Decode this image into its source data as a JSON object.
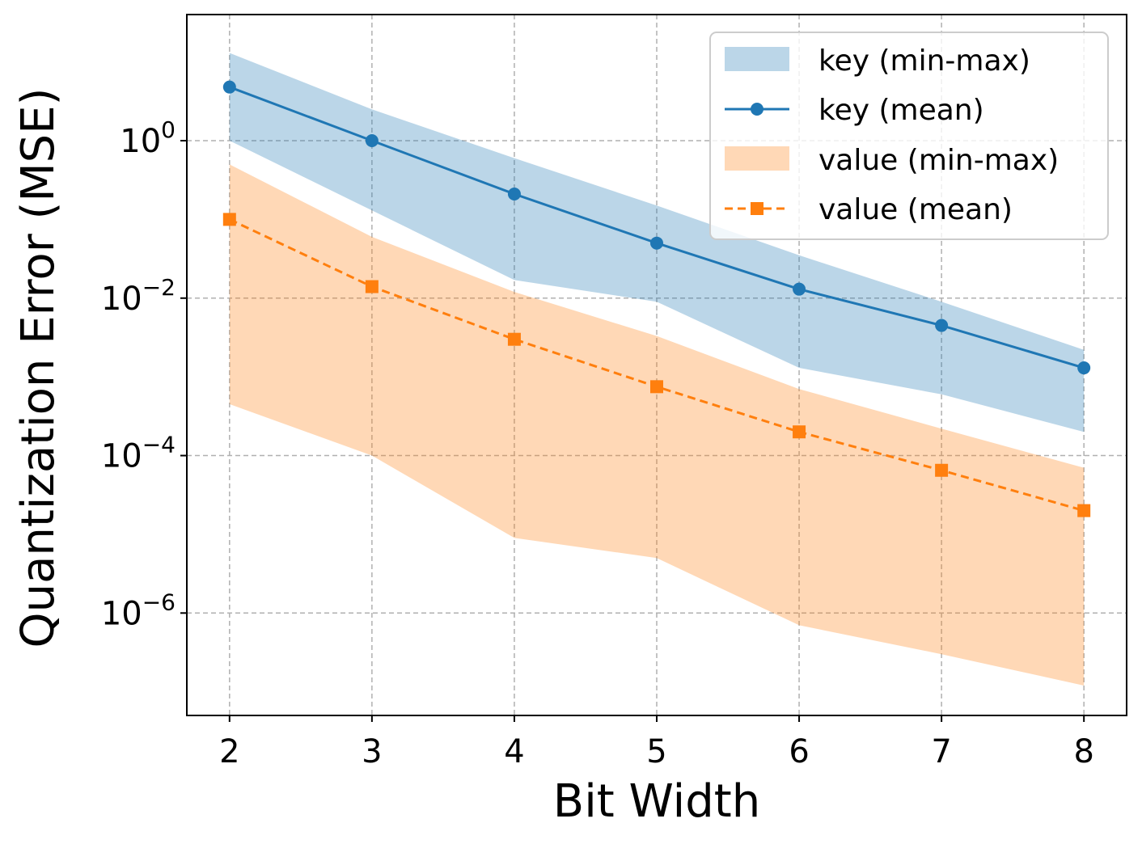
{
  "chart_data": {
    "type": "line",
    "xlabel": "Bit Width",
    "ylabel": "Quantization Error (MSE)",
    "yscale": "log",
    "ylim": [
      5e-08,
      40
    ],
    "xlim": [
      1.7,
      8.3
    ],
    "grid": true,
    "legend_location": "top-right",
    "x": [
      2,
      3,
      4,
      5,
      6,
      7,
      8
    ],
    "x_tick_labels": [
      "2",
      "3",
      "4",
      "5",
      "6",
      "7",
      "8"
    ],
    "y_ticks": [
      {
        "value": 1,
        "base": "10",
        "exp": "0"
      },
      {
        "value": 0.01,
        "base": "10",
        "exp": "−2"
      },
      {
        "value": 0.0001,
        "base": "10",
        "exp": "−4"
      },
      {
        "value": 1e-06,
        "base": "10",
        "exp": "−6"
      }
    ],
    "series": [
      {
        "name": "key (min-max)",
        "kind": "band",
        "color": "#1f77b4",
        "lower": [
          1.0,
          0.13,
          0.017,
          0.009,
          0.0013,
          0.0006,
          0.0002
        ],
        "upper": [
          13.0,
          2.5,
          0.6,
          0.15,
          0.035,
          0.009,
          0.0022
        ]
      },
      {
        "name": "key (mean)",
        "kind": "line",
        "color": "#1f77b4",
        "marker": "circle",
        "dashed": false,
        "values": [
          4.8,
          1.0,
          0.21,
          0.05,
          0.013,
          0.0045,
          0.0013
        ]
      },
      {
        "name": "value (min-max)",
        "kind": "band",
        "color": "#ff7f0e",
        "lower": [
          0.00045,
          0.0001,
          9e-06,
          5e-06,
          7e-07,
          3e-07,
          1.2e-07
        ],
        "upper": [
          0.5,
          0.06,
          0.012,
          0.0033,
          0.0007,
          0.00022,
          7e-05
        ]
      },
      {
        "name": "value (mean)",
        "kind": "line",
        "color": "#ff7f0e",
        "marker": "square",
        "dashed": true,
        "values": [
          0.1,
          0.014,
          0.003,
          0.00075,
          0.0002,
          6.5e-05,
          2e-05
        ]
      }
    ]
  }
}
